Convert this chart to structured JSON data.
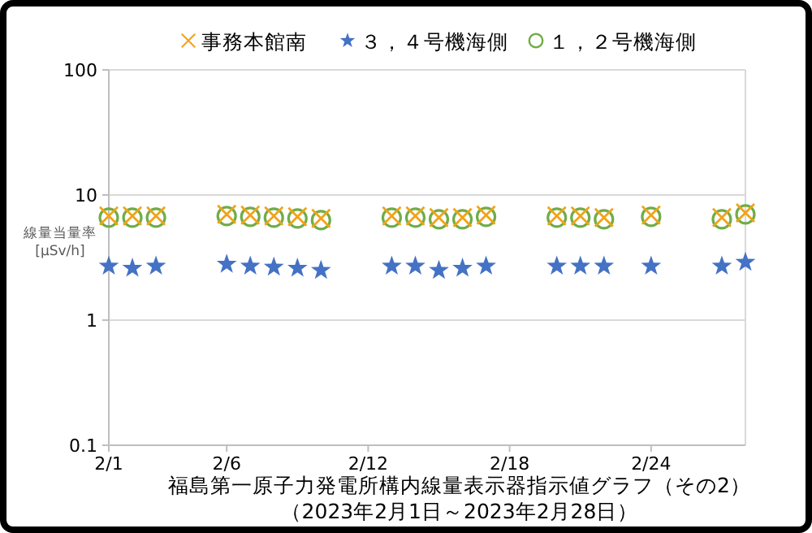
{
  "chart_data": {
    "type": "scatter",
    "title": "福島第一原子力発電所構内線量表示器指示値グラフ（その2）",
    "subtitle": "（2023年2月1日～2023年2月28日）",
    "ylabel": "線量当量率 [μSv/h]",
    "log": "y",
    "grid": "y",
    "legend": "top",
    "x": [
      "2023-02-01",
      "2023-02-02",
      "2023-02-03",
      "2023-02-06",
      "2023-02-07",
      "2023-02-08",
      "2023-02-09",
      "2023-02-10",
      "2023-02-13",
      "2023-02-14",
      "2023-02-15",
      "2023-02-16",
      "2023-02-17",
      "2023-02-20",
      "2023-02-21",
      "2023-02-22",
      "2023-02-24",
      "2023-02-27",
      "2023-02-28"
    ],
    "xlim": [
      "2023-02-01",
      "2023-02-28"
    ],
    "xticks": [
      {
        "value": "2023-02-01",
        "label": "2/1"
      },
      {
        "value": "2023-02-06",
        "label": "2/6"
      },
      {
        "value": "2023-02-12",
        "label": "2/12"
      },
      {
        "value": "2023-02-18",
        "label": "2/18"
      },
      {
        "value": "2023-02-24",
        "label": "2/24"
      }
    ],
    "ylim": [
      0.1,
      100
    ],
    "yticks": [
      0.1,
      1,
      10,
      100
    ],
    "series": [
      {
        "name": "事務本館南",
        "color": "#f0a318",
        "marker": "cross",
        "values": [
          6.8,
          6.8,
          6.8,
          7.0,
          6.9,
          6.8,
          6.7,
          6.5,
          6.8,
          6.8,
          6.6,
          6.6,
          6.9,
          6.8,
          6.8,
          6.6,
          6.9,
          6.6,
          7.2
        ]
      },
      {
        "name": "３，４号機海側",
        "color": "#4472c4",
        "marker": "star",
        "values": [
          2.7,
          2.6,
          2.7,
          2.8,
          2.7,
          2.65,
          2.6,
          2.5,
          2.7,
          2.7,
          2.5,
          2.6,
          2.7,
          2.7,
          2.7,
          2.7,
          2.7,
          2.7,
          2.9
        ]
      },
      {
        "name": "１，２号機海側",
        "color": "#70ad47",
        "marker": "circle",
        "values": [
          6.6,
          6.6,
          6.6,
          6.8,
          6.7,
          6.6,
          6.5,
          6.3,
          6.6,
          6.6,
          6.4,
          6.4,
          6.7,
          6.6,
          6.6,
          6.4,
          6.7,
          6.4,
          7.0
        ]
      }
    ]
  }
}
